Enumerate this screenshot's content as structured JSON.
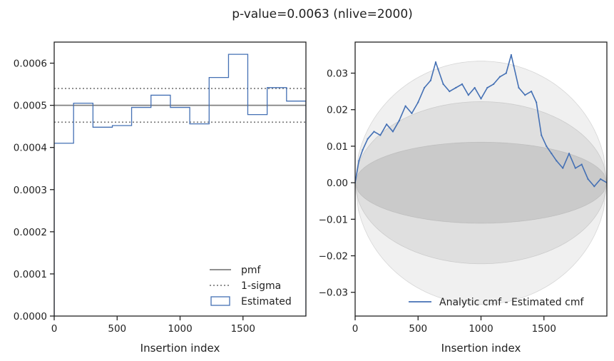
{
  "figure": {
    "title": "p-value=0.0063 (nlive=2000)"
  },
  "chart_data": [
    {
      "type": "step",
      "name": "insertion-index-histogram",
      "xlabel": "Insertion index",
      "ylabel": "",
      "xlim": [
        0,
        2000
      ],
      "ylim": [
        0,
        0.00065
      ],
      "x_ticks": [
        0,
        500,
        1000,
        1500
      ],
      "x_tick_labels": [
        "0",
        "500",
        "1000",
        "1500"
      ],
      "y_ticks": [
        0,
        0.0001,
        0.0002,
        0.0003,
        0.0004,
        0.0005,
        0.0006
      ],
      "y_tick_labels": [
        "0.0000",
        "0.0001",
        "0.0002",
        "0.0003",
        "0.0004",
        "0.0005",
        "0.0006"
      ],
      "pmf": 0.0005,
      "sigma_band": [
        0.00046,
        0.00054
      ],
      "bin_edges": [
        0,
        154,
        308,
        462,
        615,
        769,
        923,
        1077,
        1231,
        1385,
        1538,
        1692,
        1846,
        2000
      ],
      "bin_values": [
        0.00041,
        0.000505,
        0.000448,
        0.000452,
        0.000495,
        0.000524,
        0.000495,
        0.000456,
        0.000566,
        0.000621,
        0.000478,
        0.000542,
        0.00051
      ],
      "legend": [
        {
          "label": "pmf",
          "style": "solid",
          "color": "#808080"
        },
        {
          "label": "1-sigma",
          "style": "dotted",
          "color": "#808080"
        },
        {
          "label": "Estimated",
          "style": "box",
          "color": "#4470b4"
        }
      ],
      "legend_position": "lower-right"
    },
    {
      "type": "line",
      "name": "cmf-difference",
      "xlabel": "Insertion index",
      "ylabel": "",
      "xlim": [
        0,
        2000
      ],
      "ylim": [
        -0.0365,
        0.0385
      ],
      "x_ticks": [
        0,
        500,
        1000,
        1500
      ],
      "x_tick_labels": [
        "0",
        "500",
        "1000",
        "1500"
      ],
      "y_ticks": [
        -0.03,
        -0.02,
        -0.01,
        0.0,
        0.01,
        0.02,
        0.03
      ],
      "y_tick_labels": [
        "−0.03",
        "−0.02",
        "−0.01",
        "0.00",
        "0.01",
        "0.02",
        "0.03"
      ],
      "bands": [
        {
          "label": "1-sigma",
          "amplitude": 0.0111,
          "opacity": 0.22
        },
        {
          "label": "2-sigma",
          "amplitude": 0.0222,
          "opacity": 0.15
        },
        {
          "label": "3-sigma",
          "amplitude": 0.0333,
          "opacity": 0.12
        }
      ],
      "series": [
        {
          "name": "Analytic cmf - Estimated cmf",
          "color": "#4470b4",
          "x": [
            0,
            30,
            60,
            100,
            150,
            200,
            250,
            300,
            350,
            400,
            450,
            500,
            550,
            600,
            640,
            660,
            700,
            750,
            800,
            850,
            900,
            950,
            1000,
            1050,
            1100,
            1150,
            1200,
            1240,
            1260,
            1300,
            1350,
            1400,
            1440,
            1480,
            1520,
            1560,
            1600,
            1650,
            1700,
            1750,
            1800,
            1850,
            1900,
            1950,
            2000
          ],
          "y": [
            0.0,
            0.006,
            0.009,
            0.012,
            0.014,
            0.013,
            0.016,
            0.014,
            0.017,
            0.021,
            0.019,
            0.022,
            0.026,
            0.028,
            0.033,
            0.031,
            0.027,
            0.025,
            0.026,
            0.027,
            0.024,
            0.026,
            0.023,
            0.026,
            0.027,
            0.029,
            0.03,
            0.035,
            0.032,
            0.026,
            0.024,
            0.025,
            0.022,
            0.013,
            0.01,
            0.008,
            0.006,
            0.004,
            0.008,
            0.004,
            0.005,
            0.001,
            -0.001,
            0.001,
            0.0
          ]
        }
      ],
      "legend": [
        {
          "label": "Analytic cmf - Estimated cmf",
          "style": "solid",
          "color": "#4470b4"
        }
      ],
      "legend_position": "lower-right"
    }
  ]
}
